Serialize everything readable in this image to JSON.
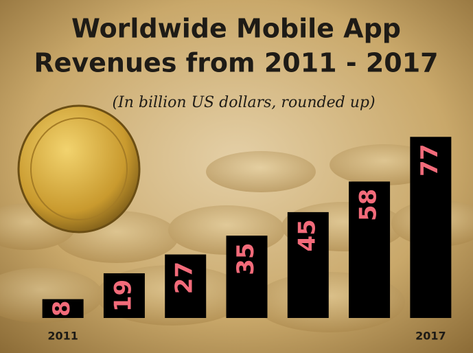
{
  "chart_data": {
    "type": "bar",
    "title": "Worldwide Mobile App",
    "title_line2": "Revenues from 2011 - 2017",
    "subtitle": "(In billion US dollars, rounded up)",
    "categories": [
      "2011",
      null,
      null,
      null,
      null,
      null,
      "2017"
    ],
    "values": [
      8,
      19,
      27,
      35,
      45,
      58,
      77
    ],
    "color": "#000000",
    "label_color": "#f26b7a",
    "ylim": [
      0,
      80
    ]
  }
}
